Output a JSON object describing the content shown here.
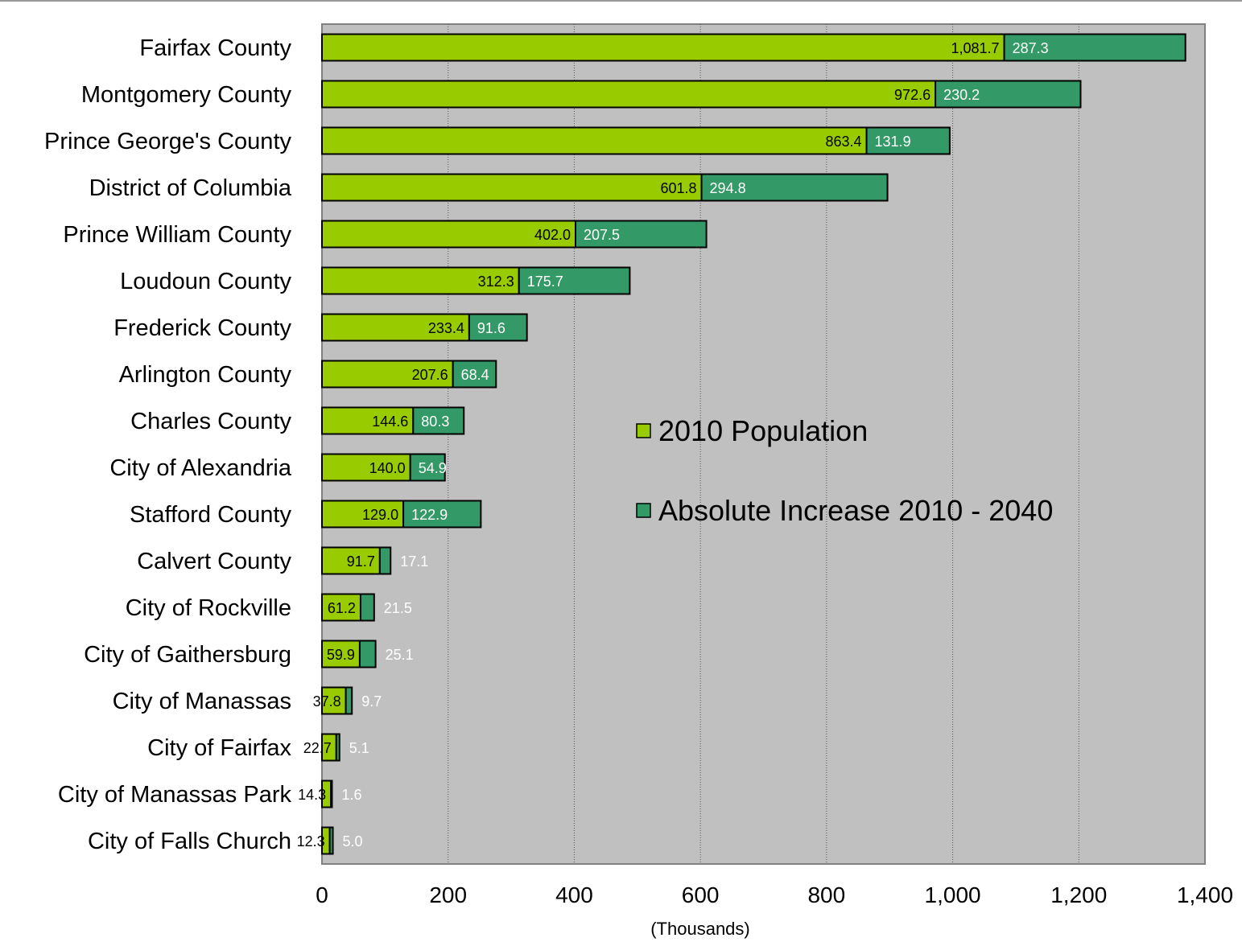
{
  "chart_data": {
    "type": "bar",
    "orientation": "horizontal",
    "stacked": true,
    "categories": [
      "Fairfax County",
      "Montgomery County",
      "Prince George's County",
      "District of Columbia",
      "Prince William County",
      "Loudoun County",
      "Frederick County",
      "Arlington County",
      "Charles County",
      "City of Alexandria",
      "Stafford County",
      "Calvert County",
      "City of Rockville",
      "City of Gaithersburg",
      "City of Manassas",
      "City of Fairfax",
      "City of Manassas Park",
      "City of Falls Church"
    ],
    "series": [
      {
        "name": "2010 Population",
        "color": "#99cc00",
        "values": [
          1081.7,
          972.6,
          863.4,
          601.8,
          402.0,
          312.3,
          233.4,
          207.6,
          144.6,
          140.0,
          129.0,
          91.7,
          61.2,
          59.9,
          37.8,
          22.7,
          14.3,
          12.3
        ],
        "labels": [
          "1,081.7",
          "972.6",
          "863.4",
          "601.8",
          "402.0",
          "312.3",
          "233.4",
          "207.6",
          "144.6",
          "140.0",
          "129.0",
          "91.7",
          "61.2",
          "59.9",
          "37.8",
          "22.7",
          "14.3",
          "12.3"
        ]
      },
      {
        "name": "Absolute Increase 2010 - 2040",
        "color": "#339966",
        "values": [
          287.3,
          230.2,
          131.9,
          294.8,
          207.5,
          175.7,
          91.6,
          68.4,
          80.3,
          54.9,
          122.9,
          17.1,
          21.5,
          25.1,
          9.7,
          5.1,
          1.6,
          5.0
        ],
        "labels": [
          "287.3",
          "230.2",
          "131.9",
          "294.8",
          "207.5",
          "175.7",
          "91.6",
          "68.4",
          "80.3",
          "54.9",
          "122.9",
          "17.1",
          "21.5",
          "25.1",
          "9.7",
          "5.1",
          "1.6",
          "5.0"
        ]
      }
    ],
    "xlabel": "(Thousands)",
    "xlim": [
      0,
      1400
    ],
    "xticks": [
      0,
      200,
      400,
      600,
      800,
      1000,
      1200,
      1400
    ],
    "xtick_labels": [
      "0",
      "200",
      "400",
      "600",
      "800",
      "1,000",
      "1,200",
      "1,400"
    ],
    "grid": "vertical dotted",
    "plot_background": "#c0c0c0",
    "legend_position": "center-right inside plot"
  }
}
